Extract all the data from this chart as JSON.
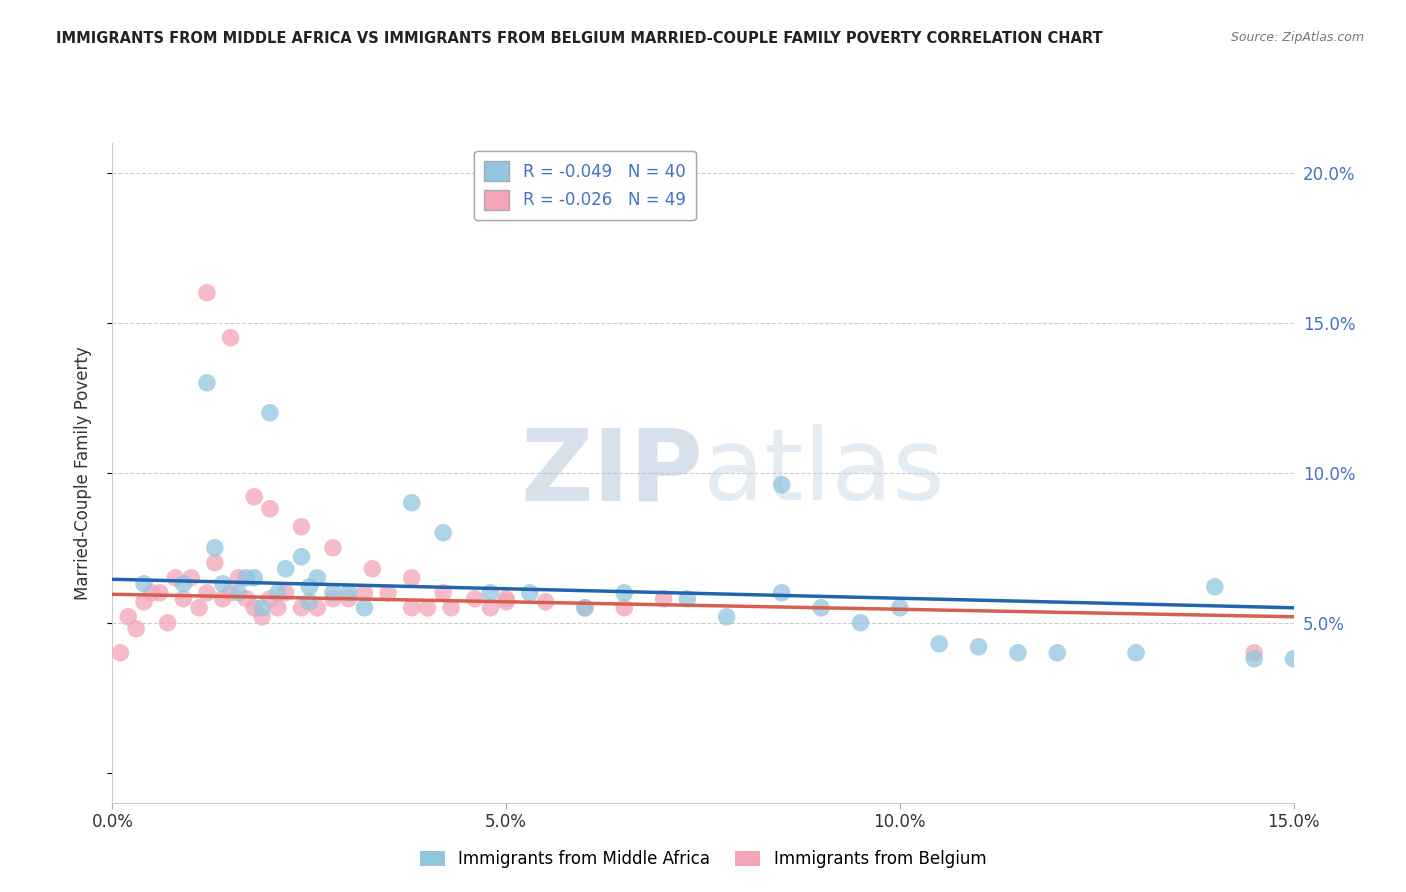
{
  "title": "IMMIGRANTS FROM MIDDLE AFRICA VS IMMIGRANTS FROM BELGIUM MARRIED-COUPLE FAMILY POVERTY CORRELATION CHART",
  "source": "Source: ZipAtlas.com",
  "ylabel": "Married-Couple Family Poverty",
  "xlim": [
    0.0,
    0.15
  ],
  "ylim": [
    -0.01,
    0.21
  ],
  "yticks": [
    0.0,
    0.05,
    0.1,
    0.15,
    0.2
  ],
  "ytick_labels": [
    "",
    "5.0%",
    "10.0%",
    "15.0%",
    "20.0%"
  ],
  "xticks": [
    0.0,
    0.05,
    0.1,
    0.15
  ],
  "xtick_labels": [
    "0.0%",
    "5.0%",
    "10.0%",
    "15.0%"
  ],
  "legend_label1": "Immigrants from Middle Africa",
  "legend_label2": "Immigrants from Belgium",
  "R1": -0.049,
  "N1": 40,
  "R2": -0.026,
  "N2": 49,
  "color_blue": "#92c5de",
  "color_pink": "#f4a5b8",
  "color_blue_line": "#2166ac",
  "color_pink_line": "#d6604d",
  "watermark_color": "#d0dce8",
  "blue_x": [
    0.004,
    0.009,
    0.012,
    0.014,
    0.016,
    0.017,
    0.019,
    0.021,
    0.024,
    0.025,
    0.013,
    0.018,
    0.022,
    0.026,
    0.028,
    0.03,
    0.032,
    0.038,
    0.042,
    0.048,
    0.053,
    0.06,
    0.065,
    0.073,
    0.078,
    0.085,
    0.09,
    0.095,
    0.1,
    0.105,
    0.11,
    0.115,
    0.12,
    0.13,
    0.14,
    0.145,
    0.15,
    0.02,
    0.025,
    0.085
  ],
  "blue_y": [
    0.063,
    0.063,
    0.13,
    0.063,
    0.06,
    0.065,
    0.055,
    0.06,
    0.072,
    0.062,
    0.075,
    0.065,
    0.068,
    0.065,
    0.06,
    0.06,
    0.055,
    0.09,
    0.08,
    0.06,
    0.06,
    0.055,
    0.06,
    0.058,
    0.052,
    0.06,
    0.055,
    0.05,
    0.055,
    0.043,
    0.042,
    0.04,
    0.04,
    0.04,
    0.062,
    0.038,
    0.038,
    0.12,
    0.057,
    0.096
  ],
  "pink_x": [
    0.001,
    0.002,
    0.003,
    0.004,
    0.005,
    0.006,
    0.007,
    0.008,
    0.009,
    0.01,
    0.011,
    0.012,
    0.013,
    0.014,
    0.015,
    0.016,
    0.017,
    0.018,
    0.019,
    0.02,
    0.021,
    0.022,
    0.024,
    0.026,
    0.028,
    0.03,
    0.032,
    0.035,
    0.038,
    0.04,
    0.043,
    0.046,
    0.048,
    0.05,
    0.055,
    0.06,
    0.065,
    0.07,
    0.012,
    0.015,
    0.018,
    0.02,
    0.024,
    0.028,
    0.033,
    0.038,
    0.042,
    0.05,
    0.145
  ],
  "pink_y": [
    0.04,
    0.052,
    0.048,
    0.057,
    0.06,
    0.06,
    0.05,
    0.065,
    0.058,
    0.065,
    0.055,
    0.06,
    0.07,
    0.058,
    0.06,
    0.065,
    0.058,
    0.055,
    0.052,
    0.058,
    0.055,
    0.06,
    0.055,
    0.055,
    0.058,
    0.058,
    0.06,
    0.06,
    0.055,
    0.055,
    0.055,
    0.058,
    0.055,
    0.058,
    0.057,
    0.055,
    0.055,
    0.058,
    0.16,
    0.145,
    0.092,
    0.088,
    0.082,
    0.075,
    0.068,
    0.065,
    0.06,
    0.057,
    0.04
  ],
  "blue_line_x": [
    0.0,
    0.15
  ],
  "blue_line_y": [
    0.0645,
    0.055
  ],
  "pink_line_x": [
    0.0,
    0.15
  ],
  "pink_line_y": [
    0.0595,
    0.052
  ]
}
